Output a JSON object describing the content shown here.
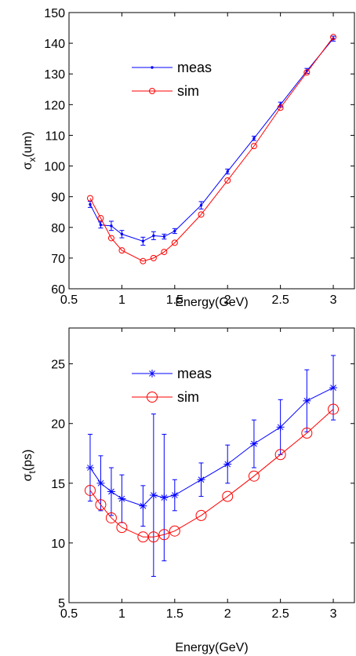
{
  "chart_data": [
    {
      "type": "line",
      "xlabel": "Energy(GeV)",
      "ylabel": "σx(um)",
      "ylabel_main": "σ",
      "ylabel_sub": "x",
      "ylabel_rest": "(um)",
      "xlim": [
        0.5,
        3.2
      ],
      "ylim": [
        60,
        150
      ],
      "xticks": [
        0.5,
        1,
        1.5,
        2,
        2.5,
        3
      ],
      "xtick_labels": [
        "0.5",
        "1",
        "1.5",
        "2",
        "2.5",
        "3"
      ],
      "yticks": [
        60,
        70,
        80,
        90,
        100,
        110,
        120,
        130,
        140,
        150
      ],
      "ytick_labels": [
        "60",
        "70",
        "80",
        "90",
        "100",
        "110",
        "120",
        "130",
        "140",
        "150"
      ],
      "legend_position": "upper-left",
      "grid": false,
      "series": [
        {
          "name": "meas",
          "color": "#0000ff",
          "marker": "dot",
          "x": [
            0.7,
            0.8,
            0.9,
            1.0,
            1.2,
            1.3,
            1.4,
            1.5,
            1.75,
            2.0,
            2.25,
            2.5,
            2.75,
            3.0
          ],
          "y": [
            87.5,
            80.8,
            80.5,
            77.8,
            75.5,
            77.3,
            77.0,
            78.8,
            87.2,
            98.2,
            109.0,
            120.0,
            131.0,
            141.5
          ],
          "err": [
            1.0,
            1.0,
            1.5,
            1.2,
            1.3,
            1.3,
            0.8,
            0.8,
            1.2,
            0.8,
            0.7,
            0.8,
            0.8,
            0.8
          ]
        },
        {
          "name": "sim",
          "color": "#ff0000",
          "marker": "circle",
          "x": [
            0.7,
            0.8,
            0.9,
            1.0,
            1.2,
            1.3,
            1.4,
            1.5,
            1.75,
            2.0,
            2.25,
            2.5,
            2.75,
            3.0
          ],
          "y": [
            89.5,
            83.0,
            76.5,
            72.5,
            69.0,
            70.0,
            72.0,
            75.0,
            84.2,
            95.3,
            106.5,
            119.0,
            130.5,
            142.0
          ]
        }
      ]
    },
    {
      "type": "line",
      "xlabel": "Energy(GeV)",
      "ylabel": "σt(ps)",
      "ylabel_main": "σ",
      "ylabel_sub": "t",
      "ylabel_rest": "(ps)",
      "xlim": [
        0.5,
        3.2
      ],
      "ylim": [
        5,
        28
      ],
      "xticks": [
        0.5,
        1,
        1.5,
        2,
        2.5,
        3
      ],
      "xtick_labels": [
        "0.5",
        "1",
        "1.5",
        "2",
        "2.5",
        "3"
      ],
      "yticks": [
        5,
        10,
        15,
        20,
        25
      ],
      "ytick_labels": [
        "5",
        "10",
        "15",
        "20",
        "25"
      ],
      "legend_position": "upper-left",
      "grid": false,
      "series": [
        {
          "name": "meas",
          "color": "#0000ff",
          "marker": "star",
          "x": [
            0.7,
            0.8,
            0.9,
            1.0,
            1.2,
            1.3,
            1.4,
            1.5,
            1.75,
            2.0,
            2.25,
            2.5,
            2.75,
            3.0
          ],
          "y": [
            16.3,
            15.0,
            14.3,
            13.7,
            13.1,
            14.0,
            13.8,
            14.0,
            15.3,
            16.6,
            18.3,
            19.7,
            21.9,
            23.0
          ],
          "err": [
            2.8,
            2.3,
            2.0,
            2.0,
            1.7,
            6.8,
            5.3,
            1.3,
            1.4,
            1.6,
            2.0,
            2.3,
            2.6,
            2.7
          ]
        },
        {
          "name": "sim",
          "color": "#ff0000",
          "marker": "circle",
          "x": [
            0.7,
            0.8,
            0.9,
            1.0,
            1.2,
            1.3,
            1.4,
            1.5,
            1.75,
            2.0,
            2.25,
            2.5,
            2.75,
            3.0
          ],
          "y": [
            14.4,
            13.2,
            12.1,
            11.3,
            10.5,
            10.5,
            10.7,
            11.0,
            12.3,
            13.9,
            15.6,
            17.4,
            19.2,
            21.2
          ]
        }
      ]
    }
  ]
}
